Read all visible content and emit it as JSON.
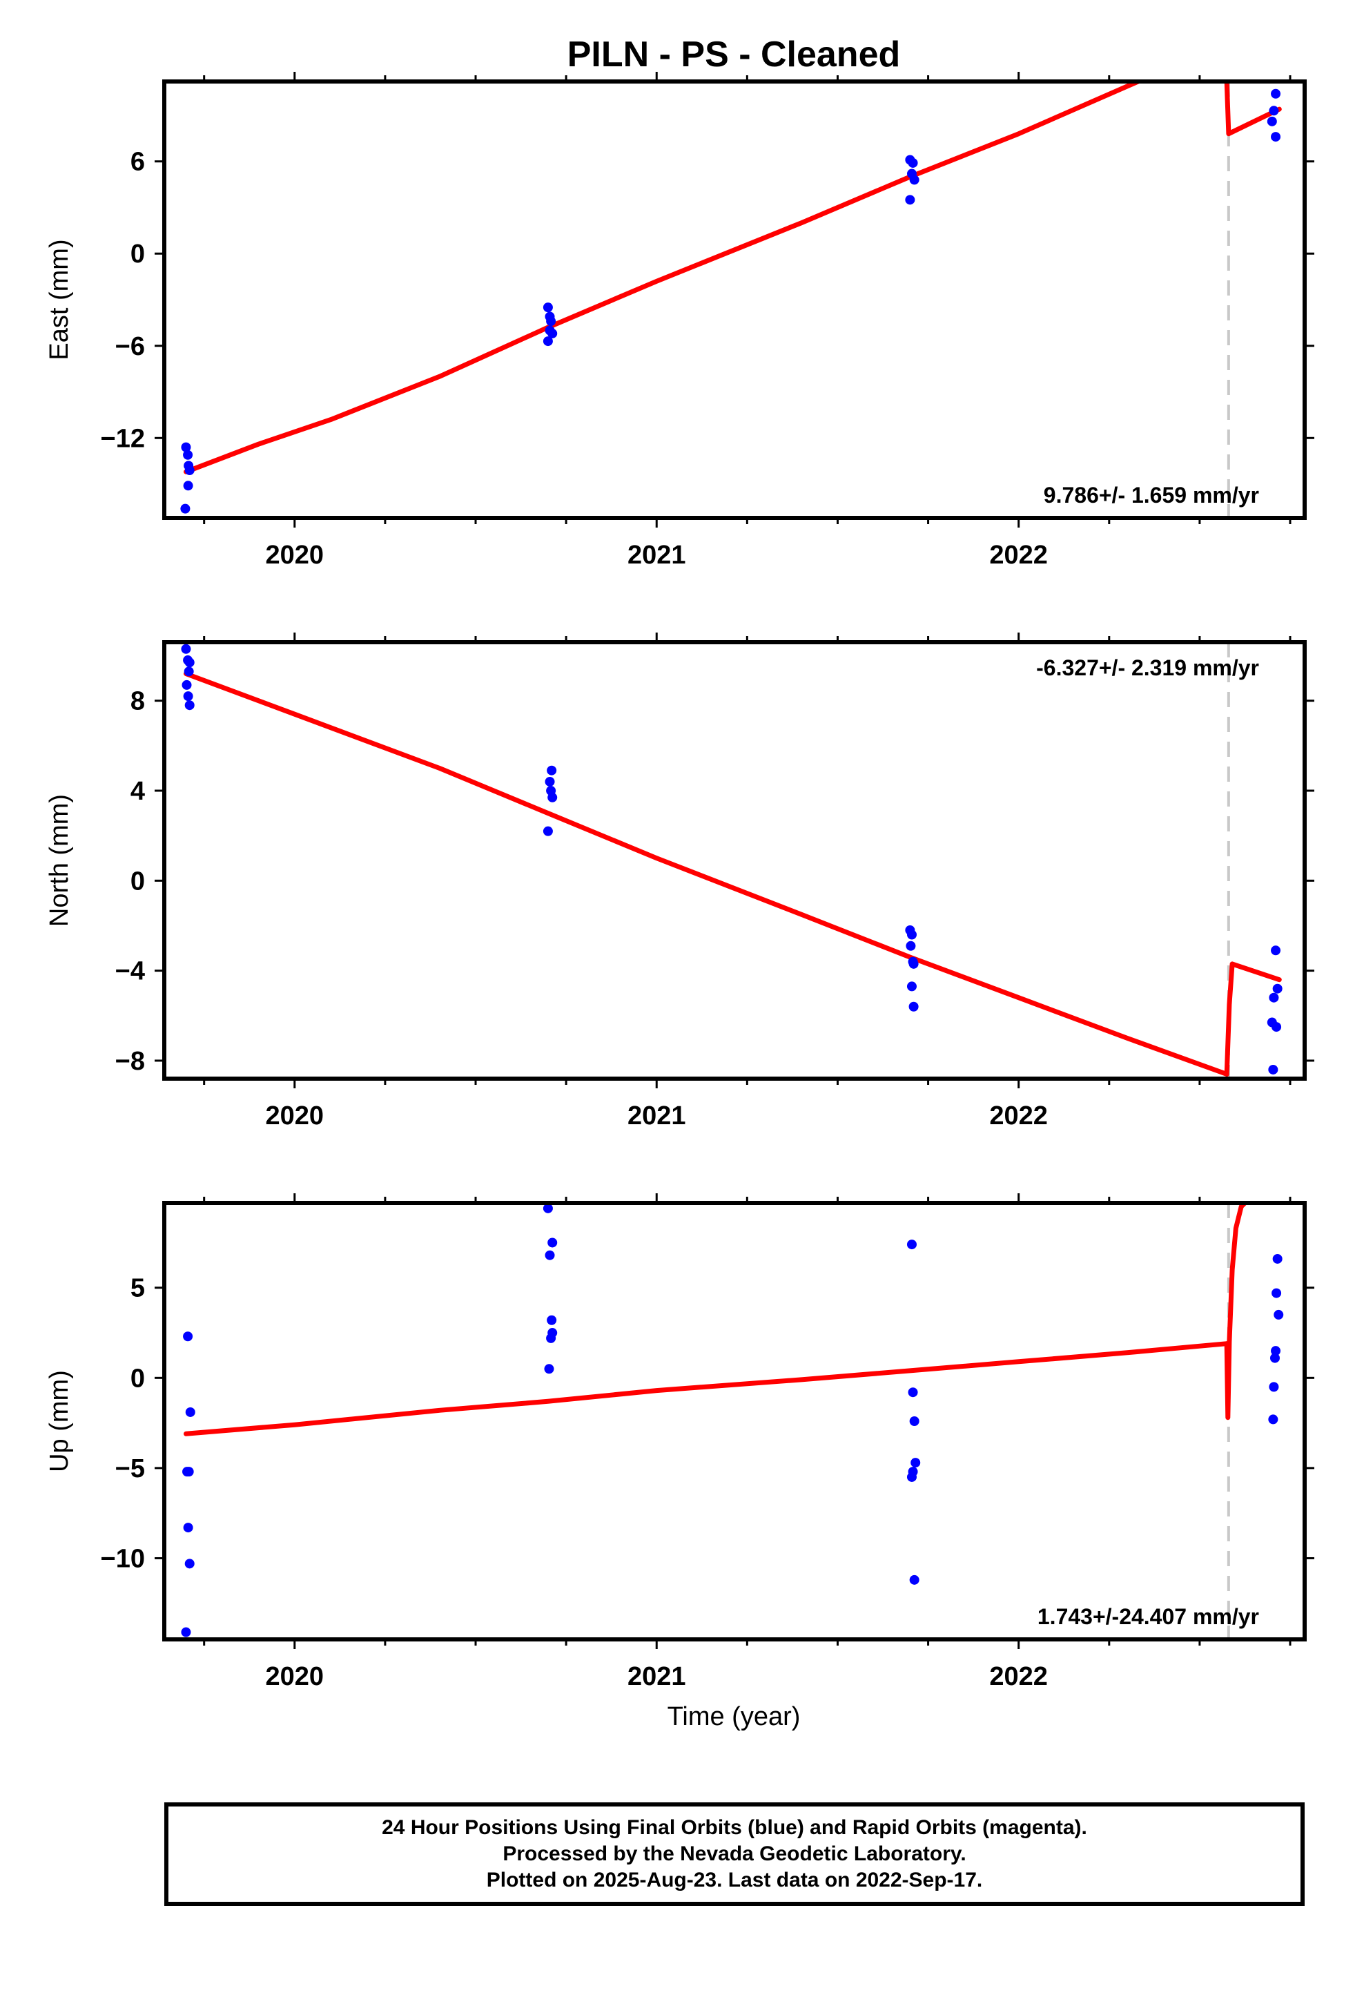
{
  "title": "PILN  - PS - Cleaned",
  "xlabel": "Time (year)",
  "footer": {
    "line1": "24 Hour Positions Using Final Orbits (blue) and Rapid Orbits (magenta).",
    "line2": "Processed by the Nevada Geodetic Laboratory.",
    "line3": "Plotted on 2025-Aug-23. Last data on 2022-Sep-17."
  },
  "colors": {
    "points": "#0000ff",
    "model": "#ff0000",
    "break_line": "#c8c8c8",
    "frame": "#000000"
  },
  "chart_data": [
    {
      "type": "scatter",
      "ylabel": "East (mm)",
      "rate_label": "9.786+/- 1.659 mm/yr",
      "rate_position": "bottom-right",
      "xlim": [
        2019.64,
        2022.79
      ],
      "ylim": [
        -17.2,
        11.2
      ],
      "xticks": [
        2020,
        2021,
        2022
      ],
      "yticks": [
        -12,
        -6,
        0,
        6
      ],
      "ytick_labels": [
        "−12",
        "−6",
        "0",
        "6"
      ],
      "break_year": 2022.58,
      "points": [
        {
          "x": 2019.7,
          "y": -12.6
        },
        {
          "x": 2019.705,
          "y": -13.1
        },
        {
          "x": 2019.707,
          "y": -13.8
        },
        {
          "x": 2019.71,
          "y": -14.1
        },
        {
          "x": 2019.706,
          "y": -15.1
        },
        {
          "x": 2019.698,
          "y": -16.6
        },
        {
          "x": 2020.7,
          "y": -3.5
        },
        {
          "x": 2020.705,
          "y": -4.1
        },
        {
          "x": 2020.708,
          "y": -4.4
        },
        {
          "x": 2020.705,
          "y": -5.0
        },
        {
          "x": 2020.712,
          "y": -5.2
        },
        {
          "x": 2020.7,
          "y": -5.7
        },
        {
          "x": 2021.7,
          "y": 6.1
        },
        {
          "x": 2021.708,
          "y": 5.9
        },
        {
          "x": 2021.705,
          "y": 5.2
        },
        {
          "x": 2021.712,
          "y": 4.8
        },
        {
          "x": 2021.7,
          "y": 3.5
        },
        {
          "x": 2022.71,
          "y": 10.4
        },
        {
          "x": 2022.705,
          "y": 9.3
        },
        {
          "x": 2022.7,
          "y": 8.6
        },
        {
          "x": 2022.71,
          "y": 7.6
        }
      ],
      "model": [
        {
          "x": 2019.7,
          "y": -14.2
        },
        {
          "x": 2019.9,
          "y": -12.4
        },
        {
          "x": 2020.1,
          "y": -10.8
        },
        {
          "x": 2020.4,
          "y": -8.0
        },
        {
          "x": 2020.7,
          "y": -4.8
        },
        {
          "x": 2021.0,
          "y": -1.8
        },
        {
          "x": 2021.4,
          "y": 2.0
        },
        {
          "x": 2021.7,
          "y": 5.0
        },
        {
          "x": 2022.0,
          "y": 7.8
        },
        {
          "x": 2022.33,
          "y": 11.2
        }
      ],
      "model_post": [
        {
          "x": 2022.575,
          "y": 11.2
        },
        {
          "x": 2022.58,
          "y": 7.8
        },
        {
          "x": 2022.72,
          "y": 9.4
        }
      ]
    },
    {
      "type": "scatter",
      "ylabel": "North (mm)",
      "rate_label": "-6.327+/- 2.319 mm/yr",
      "rate_position": "top-right",
      "xlim": [
        2019.64,
        2022.79
      ],
      "ylim": [
        -8.8,
        10.6
      ],
      "xticks": [
        2020,
        2021,
        2022
      ],
      "yticks": [
        -8,
        -4,
        0,
        4,
        8
      ],
      "ytick_labels": [
        "−8",
        "−4",
        "0",
        "4",
        "8"
      ],
      "break_year": 2022.58,
      "points": [
        {
          "x": 2019.7,
          "y": 10.3
        },
        {
          "x": 2019.705,
          "y": 9.8
        },
        {
          "x": 2019.71,
          "y": 9.7
        },
        {
          "x": 2019.708,
          "y": 9.3
        },
        {
          "x": 2019.702,
          "y": 8.7
        },
        {
          "x": 2019.706,
          "y": 8.2
        },
        {
          "x": 2019.71,
          "y": 7.8
        },
        {
          "x": 2020.71,
          "y": 4.9
        },
        {
          "x": 2020.705,
          "y": 4.4
        },
        {
          "x": 2020.708,
          "y": 4.0
        },
        {
          "x": 2020.712,
          "y": 3.7
        },
        {
          "x": 2020.7,
          "y": 2.2
        },
        {
          "x": 2021.7,
          "y": -2.2
        },
        {
          "x": 2021.705,
          "y": -2.4
        },
        {
          "x": 2021.702,
          "y": -2.9
        },
        {
          "x": 2021.708,
          "y": -3.6
        },
        {
          "x": 2021.71,
          "y": -3.7
        },
        {
          "x": 2021.705,
          "y": -4.7
        },
        {
          "x": 2021.71,
          "y": -5.6
        },
        {
          "x": 2022.71,
          "y": -3.1
        },
        {
          "x": 2022.715,
          "y": -4.8
        },
        {
          "x": 2022.705,
          "y": -5.2
        },
        {
          "x": 2022.7,
          "y": -6.3
        },
        {
          "x": 2022.712,
          "y": -6.5
        },
        {
          "x": 2022.703,
          "y": -8.4
        }
      ],
      "model": [
        {
          "x": 2019.7,
          "y": 9.2
        },
        {
          "x": 2020.0,
          "y": 7.4
        },
        {
          "x": 2020.4,
          "y": 5.0
        },
        {
          "x": 2020.7,
          "y": 3.0
        },
        {
          "x": 2021.0,
          "y": 1.0
        },
        {
          "x": 2021.4,
          "y": -1.5
        },
        {
          "x": 2021.7,
          "y": -3.4
        },
        {
          "x": 2022.0,
          "y": -5.2
        },
        {
          "x": 2022.3,
          "y": -7.0
        },
        {
          "x": 2022.575,
          "y": -8.6
        }
      ],
      "model_post": [
        {
          "x": 2022.575,
          "y": -8.6
        },
        {
          "x": 2022.582,
          "y": -5.5
        },
        {
          "x": 2022.59,
          "y": -3.7
        },
        {
          "x": 2022.72,
          "y": -4.4
        }
      ]
    },
    {
      "type": "scatter",
      "ylabel": "Up (mm)",
      "rate_label": "1.743+/-24.407 mm/yr",
      "rate_position": "bottom-right",
      "xlim": [
        2019.64,
        2022.79
      ],
      "ylim": [
        -14.5,
        9.7
      ],
      "xticks": [
        2020,
        2021,
        2022
      ],
      "yticks": [
        -10,
        -5,
        0,
        5
      ],
      "ytick_labels": [
        "−10",
        "−5",
        "0",
        "5"
      ],
      "break_year": 2022.58,
      "points": [
        {
          "x": 2019.705,
          "y": 2.3
        },
        {
          "x": 2019.712,
          "y": -1.9
        },
        {
          "x": 2019.708,
          "y": -5.2
        },
        {
          "x": 2019.703,
          "y": -5.2
        },
        {
          "x": 2019.706,
          "y": -8.3
        },
        {
          "x": 2019.71,
          "y": -10.3
        },
        {
          "x": 2019.7,
          "y": -14.1
        },
        {
          "x": 2020.7,
          "y": 9.4
        },
        {
          "x": 2020.712,
          "y": 7.5
        },
        {
          "x": 2020.705,
          "y": 6.8
        },
        {
          "x": 2020.71,
          "y": 3.2
        },
        {
          "x": 2020.712,
          "y": 2.5
        },
        {
          "x": 2020.708,
          "y": 2.2
        },
        {
          "x": 2020.703,
          "y": 0.5
        },
        {
          "x": 2021.705,
          "y": 7.4
        },
        {
          "x": 2021.708,
          "y": -0.8
        },
        {
          "x": 2021.712,
          "y": -2.4
        },
        {
          "x": 2021.715,
          "y": -4.7
        },
        {
          "x": 2021.708,
          "y": -5.2
        },
        {
          "x": 2021.705,
          "y": -5.5
        },
        {
          "x": 2021.712,
          "y": -11.2
        },
        {
          "x": 2022.715,
          "y": 6.6
        },
        {
          "x": 2022.712,
          "y": 4.7
        },
        {
          "x": 2022.718,
          "y": 3.5
        },
        {
          "x": 2022.71,
          "y": 1.5
        },
        {
          "x": 2022.708,
          "y": 1.1
        },
        {
          "x": 2022.705,
          "y": -0.5
        },
        {
          "x": 2022.703,
          "y": -2.3
        }
      ],
      "model": [
        {
          "x": 2019.7,
          "y": -3.1
        },
        {
          "x": 2020.0,
          "y": -2.6
        },
        {
          "x": 2020.4,
          "y": -1.8
        },
        {
          "x": 2020.7,
          "y": -1.3
        },
        {
          "x": 2021.0,
          "y": -0.7
        },
        {
          "x": 2021.4,
          "y": -0.1
        },
        {
          "x": 2021.7,
          "y": 0.4
        },
        {
          "x": 2022.0,
          "y": 0.9
        },
        {
          "x": 2022.3,
          "y": 1.4
        },
        {
          "x": 2022.575,
          "y": 1.9
        }
      ],
      "model_post": [
        {
          "x": 2022.575,
          "y": 1.9
        },
        {
          "x": 2022.578,
          "y": -2.2
        },
        {
          "x": 2022.582,
          "y": 2.0
        },
        {
          "x": 2022.59,
          "y": 6.0
        },
        {
          "x": 2022.6,
          "y": 8.3
        },
        {
          "x": 2022.615,
          "y": 9.5
        },
        {
          "x": 2022.625,
          "y": 9.7
        }
      ]
    }
  ]
}
